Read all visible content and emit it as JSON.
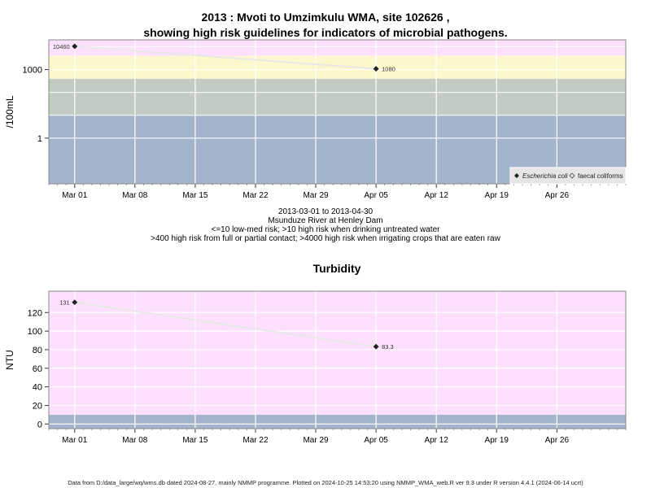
{
  "header": {
    "title_line1": "2013 : Mvoti to Umzimkulu WMA, site 102626 ,",
    "title_line2": "showing high risk guidelines for indicators of microbial pathogens."
  },
  "subtitle": {
    "date_range": "2013-03-01 to 2013-04-30",
    "location": "Msunduze River at Henley Dam",
    "guideline1": "<=10 low-med risk; >10 high risk when drinking untreated water",
    "guideline2": ">400 high risk from full or partial contact; >4000 high risk when irrigating crops that are eaten raw"
  },
  "footer": {
    "text": "Data from D:/data_large/wq/wms.db dated 2024-08-27, mainly NMMP programme. Plotted on 2024-10-25 14:53:20 using NMMP_WMA_web.R ver 9.3 under R version 4.4.1 (2024-06-14 ucrt)"
  },
  "chart_data": [
    {
      "type": "line",
      "title": "",
      "ylabel": "/100mL",
      "y_scale": "log10",
      "ylim": [
        0.01,
        20000
      ],
      "y_ticks": [
        "1",
        "1000"
      ],
      "x_ticks": [
        "Mar 01",
        "Mar 08",
        "Mar 15",
        "Mar 22",
        "Mar 29",
        "Apr 05",
        "Apr 12",
        "Apr 19",
        "Apr 26"
      ],
      "x_tick_dates": [
        "2013-03-01",
        "2013-03-08",
        "2013-03-15",
        "2013-03-22",
        "2013-03-29",
        "2013-04-05",
        "2013-04-12",
        "2013-04-19",
        "2013-04-26"
      ],
      "xlim": [
        "2013-02-26",
        "2013-05-04"
      ],
      "bands": [
        {
          "from": 0.01,
          "to": 10,
          "color": "#a3b4cc"
        },
        {
          "from": 10,
          "to": 400,
          "color": "#c3ccc3"
        },
        {
          "from": 400,
          "to": 4000,
          "color": "#fdf8cc"
        },
        {
          "from": 4000,
          "to": 20000,
          "color": "#fde0fd"
        }
      ],
      "legend": {
        "position": "bottom-right",
        "entries": [
          "Escherichia coli",
          "faecal coliforms"
        ]
      },
      "series": [
        {
          "name": "Escherichia coli",
          "x": [
            "2013-03-01",
            "2013-04-05"
          ],
          "y": [
            10460,
            1080
          ],
          "labels": [
            "10460",
            "1080"
          ]
        }
      ]
    },
    {
      "type": "line",
      "title": "Turbidity",
      "ylabel": "NTU",
      "y_scale": "linear",
      "ylim": [
        -5,
        143
      ],
      "y_ticks": [
        0,
        20,
        40,
        60,
        80,
        100,
        120
      ],
      "x_ticks": [
        "Mar 01",
        "Mar 08",
        "Mar 15",
        "Mar 22",
        "Mar 29",
        "Apr 05",
        "Apr 12",
        "Apr 19",
        "Apr 26"
      ],
      "x_tick_dates": [
        "2013-03-01",
        "2013-03-08",
        "2013-03-15",
        "2013-03-22",
        "2013-03-29",
        "2013-04-05",
        "2013-04-12",
        "2013-04-19",
        "2013-04-26"
      ],
      "xlim": [
        "2013-02-26",
        "2013-05-04"
      ],
      "bands": [
        {
          "from": -5,
          "to": 10,
          "color": "#a3b4cc"
        },
        {
          "from": 10,
          "to": 143,
          "color": "#fde0fd"
        }
      ],
      "series": [
        {
          "x": [
            "2013-03-01",
            "2013-04-05"
          ],
          "y": [
            131,
            83.3
          ],
          "labels": [
            "131",
            "83.3"
          ]
        }
      ]
    }
  ]
}
